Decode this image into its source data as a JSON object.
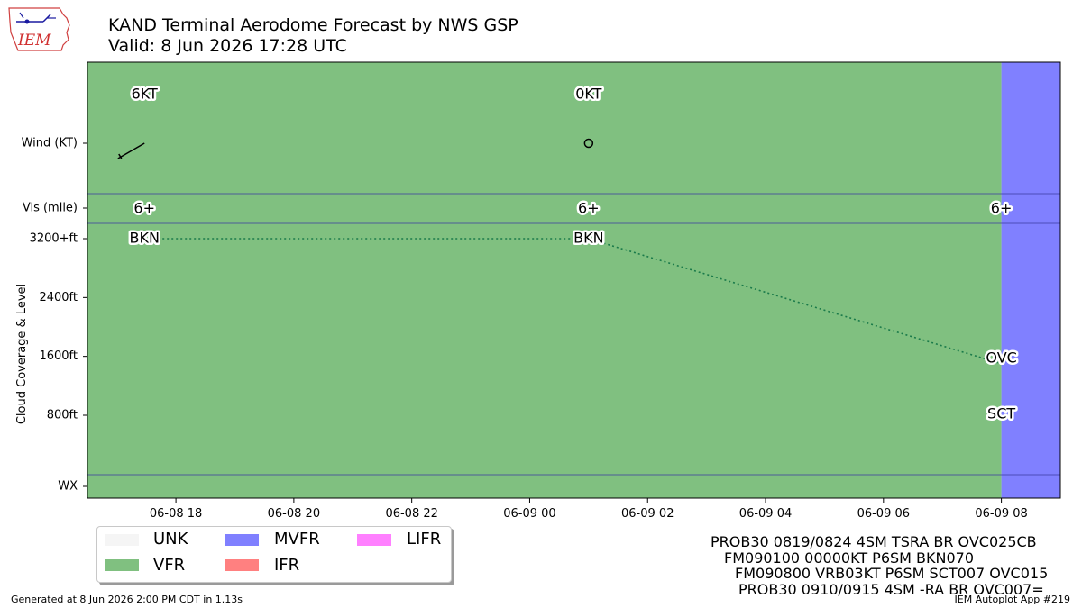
{
  "header": {
    "title": "KAND Terminal Aerodome Forecast by NWS GSP",
    "valid": "Valid: 8 Jun 2026 17:28 UTC"
  },
  "logo": {
    "text": "IEM",
    "icon": "iem-iowa-logo"
  },
  "chart_data": {
    "type": "taf-timeline",
    "x_range": [
      "2026-06-08 16:30",
      "2026-06-09 09:00"
    ],
    "x_ticks": [
      {
        "t": "2026-06-08 18:00",
        "label": "06-08 18"
      },
      {
        "t": "2026-06-08 20:00",
        "label": "06-08 20"
      },
      {
        "t": "2026-06-08 22:00",
        "label": "06-08 22"
      },
      {
        "t": "2026-06-09 00:00",
        "label": "06-09 00"
      },
      {
        "t": "2026-06-09 02:00",
        "label": "06-09 02"
      },
      {
        "t": "2026-06-09 04:00",
        "label": "06-09 04"
      },
      {
        "t": "2026-06-09 06:00",
        "label": "06-09 06"
      },
      {
        "t": "2026-06-09 08:00",
        "label": "06-09 08"
      }
    ],
    "y_ticks": [
      {
        "label": "Wind (KT)",
        "row": "wind"
      },
      {
        "label": "Vis (mile)",
        "row": "vis"
      },
      {
        "label": "3200+ft",
        "level": 3200
      },
      {
        "label": "2400ft",
        "level": 2400
      },
      {
        "label": "1600ft",
        "level": 1600
      },
      {
        "label": "800ft",
        "level": 800
      },
      {
        "label": "WX",
        "row": "wx"
      }
    ],
    "ylabel": "Cloud Coverage & Level",
    "category_periods": [
      {
        "start": "2026-06-08 16:30",
        "end": "2026-06-09 08:00",
        "category": "VFR"
      },
      {
        "start": "2026-06-09 08:00",
        "end": "2026-06-09 09:00",
        "category": "MVFR"
      }
    ],
    "wind": [
      {
        "t": "2026-06-08 17:28",
        "label": "6KT",
        "speed": 6,
        "dir": 240
      },
      {
        "t": "2026-06-09 01:00",
        "label": "0KT",
        "speed": 0,
        "dir": 0
      }
    ],
    "visibility": [
      {
        "t": "2026-06-08 17:28",
        "label": "6+"
      },
      {
        "t": "2026-06-09 01:00",
        "label": "6+"
      },
      {
        "t": "2026-06-09 08:00",
        "label": "6+"
      }
    ],
    "clouds": [
      {
        "t": "2026-06-08 17:28",
        "cover": "BKN",
        "level": 3200
      },
      {
        "t": "2026-06-09 01:00",
        "cover": "BKN",
        "level": 3200
      },
      {
        "t": "2026-06-09 08:00",
        "cover": "OVC",
        "level": 1500
      },
      {
        "t": "2026-06-09 08:00",
        "cover": "SCT",
        "level": 700
      }
    ],
    "legend": [
      {
        "label": "UNK",
        "color": "#f5f5f5"
      },
      {
        "label": "VFR",
        "color": "#80c080"
      },
      {
        "label": "MVFR",
        "color": "#8080ff"
      },
      {
        "label": "IFR",
        "color": "#ff8080"
      },
      {
        "label": "LIFR",
        "color": "#ff80ff"
      }
    ]
  },
  "taf_text": [
    "PROB30 0819/0824 4SM TSRA BR OVC025CB",
    "FM090100 00000KT P6SM BKN070",
    "FM090800 VRB03KT P6SM SCT007 OVC015",
    "PROB30 0910/0915 4SM -RA BR OVC007="
  ],
  "footer": {
    "generated": "Generated at 8 Jun 2026 2:00 PM CDT in 1.13s",
    "app": "IEM Autoplot App #219"
  }
}
